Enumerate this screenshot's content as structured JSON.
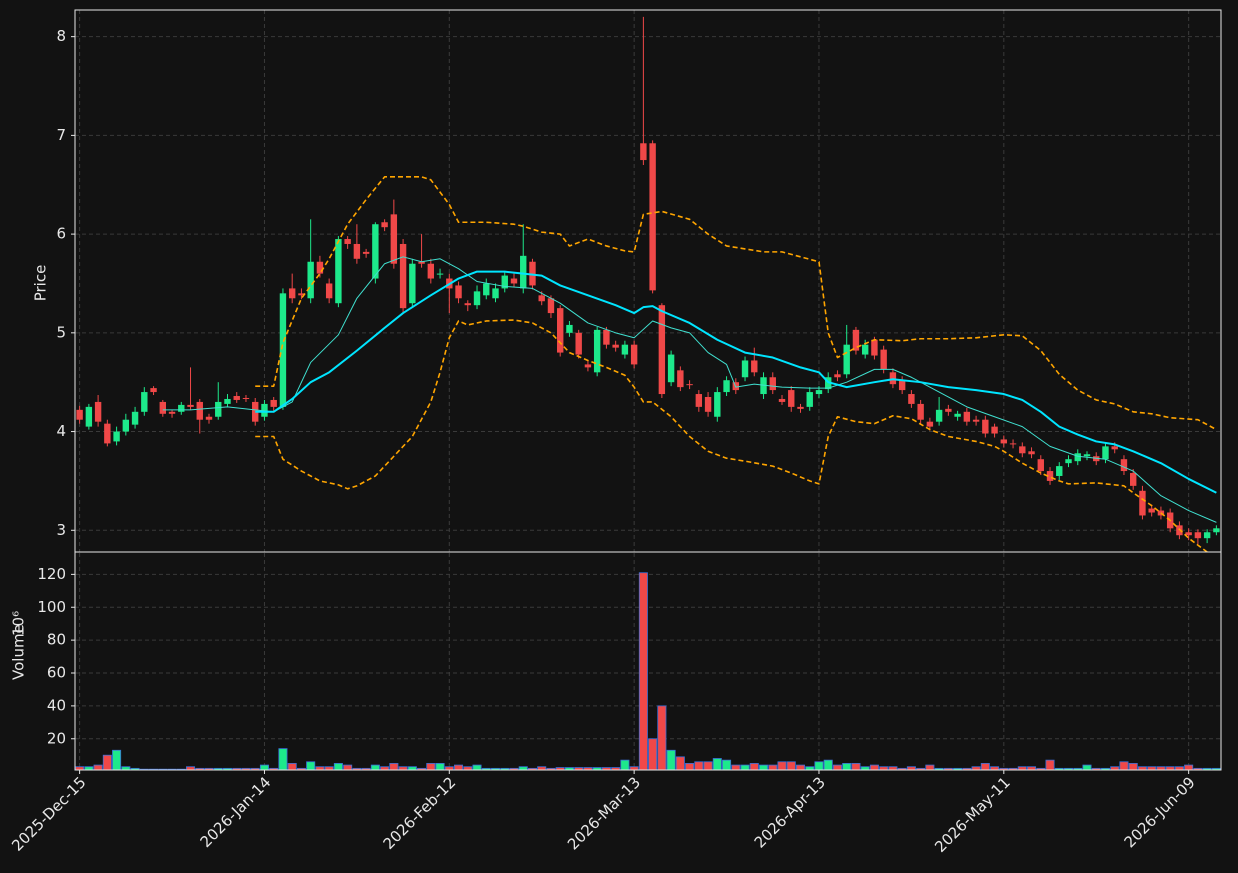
{
  "chart_data": {
    "type": "candlestick",
    "ylabel": "Price",
    "up_color": "#1de98b",
    "down_color": "#f04848",
    "grid": true,
    "xlim": [
      -0.5,
      123.5
    ],
    "ylim": [
      2.78,
      8.27
    ],
    "yticks": [
      3,
      4,
      5,
      6,
      7,
      8
    ],
    "categories": [
      "2025-Dec-15",
      null,
      null,
      null,
      null,
      null,
      null,
      null,
      null,
      null,
      null,
      null,
      null,
      null,
      null,
      null,
      null,
      null,
      null,
      null,
      "2026-Jan-14",
      null,
      null,
      null,
      null,
      null,
      null,
      null,
      null,
      null,
      null,
      null,
      null,
      null,
      null,
      null,
      null,
      null,
      null,
      null,
      "2026-Feb-12",
      null,
      null,
      null,
      null,
      null,
      null,
      null,
      null,
      null,
      null,
      null,
      null,
      null,
      null,
      null,
      null,
      null,
      null,
      null,
      "2026-Mar-13",
      null,
      null,
      null,
      null,
      null,
      null,
      null,
      null,
      null,
      null,
      null,
      null,
      null,
      null,
      null,
      null,
      null,
      null,
      null,
      "2026-Apr-13",
      null,
      null,
      null,
      null,
      null,
      null,
      null,
      null,
      null,
      null,
      null,
      null,
      null,
      null,
      null,
      null,
      null,
      null,
      null,
      "2026-May-11",
      null,
      null,
      null,
      null,
      null,
      null,
      null,
      null,
      null,
      null,
      null,
      null,
      null,
      null,
      null,
      null,
      null,
      null,
      null,
      "2026-Jun-09",
      null,
      null,
      null
    ],
    "open": [
      4.22,
      4.05,
      4.3,
      4.08,
      3.9,
      4.0,
      4.07,
      4.2,
      4.44,
      4.3,
      4.2,
      4.2,
      4.27,
      4.3,
      4.15,
      4.15,
      4.28,
      4.36,
      4.34,
      4.3,
      4.15,
      4.32,
      4.25,
      5.45,
      5.4,
      5.35,
      5.72,
      5.5,
      5.3,
      5.95,
      5.9,
      5.82,
      5.55,
      6.12,
      6.2,
      5.9,
      5.3,
      5.72,
      5.7,
      5.6,
      5.55,
      5.48,
      5.3,
      5.28,
      5.38,
      5.35,
      5.45,
      5.55,
      5.45,
      5.72,
      5.38,
      5.35,
      5.25,
      5.0,
      5.0,
      4.68,
      4.6,
      5.03,
      4.88,
      4.78,
      4.88,
      6.92,
      6.92,
      5.28,
      4.5,
      4.62,
      4.48,
      4.38,
      4.35,
      4.15,
      4.4,
      4.5,
      4.55,
      4.72,
      4.38,
      4.55,
      4.33,
      4.42,
      4.25,
      4.25,
      4.38,
      4.43,
      4.58,
      4.58,
      5.03,
      4.78,
      4.93,
      4.83,
      4.6,
      4.52,
      4.38,
      4.28,
      4.1,
      4.1,
      4.23,
      4.15,
      4.2,
      4.12,
      4.12,
      4.05,
      3.92,
      3.88,
      3.85,
      3.8,
      3.72,
      3.6,
      3.55,
      3.68,
      3.7,
      3.75,
      3.75,
      3.72,
      3.85,
      3.72,
      3.58,
      3.4,
      3.22,
      3.2,
      3.18,
      3.05,
      2.98,
      2.98,
      2.92,
      2.98
    ],
    "high": [
      4.26,
      4.28,
      4.37,
      4.12,
      4.05,
      4.18,
      4.25,
      4.45,
      4.46,
      4.32,
      4.22,
      4.3,
      4.65,
      4.33,
      4.18,
      4.5,
      4.38,
      4.4,
      4.37,
      4.34,
      4.32,
      4.35,
      5.45,
      5.6,
      5.45,
      6.15,
      5.78,
      5.55,
      5.98,
      5.98,
      6.1,
      5.85,
      6.12,
      6.15,
      6.35,
      5.95,
      5.75,
      6.0,
      5.75,
      5.65,
      5.6,
      5.52,
      5.33,
      5.48,
      5.55,
      5.5,
      5.62,
      5.6,
      6.1,
      5.75,
      5.42,
      5.38,
      5.28,
      5.12,
      5.03,
      4.72,
      5.06,
      5.06,
      4.92,
      4.92,
      4.92,
      8.2,
      6.95,
      5.3,
      4.82,
      4.66,
      4.52,
      4.42,
      4.4,
      4.45,
      4.56,
      4.54,
      4.76,
      4.85,
      4.6,
      4.6,
      4.37,
      4.46,
      4.28,
      4.45,
      4.46,
      4.6,
      4.62,
      5.08,
      5.06,
      4.93,
      4.96,
      4.87,
      4.64,
      4.56,
      4.42,
      4.32,
      4.14,
      4.35,
      4.27,
      4.21,
      4.24,
      4.16,
      4.16,
      4.08,
      3.96,
      3.92,
      3.89,
      3.84,
      3.76,
      3.64,
      3.69,
      3.76,
      3.82,
      3.8,
      3.79,
      3.89,
      3.89,
      3.76,
      3.62,
      3.45,
      3.26,
      3.24,
      3.22,
      3.09,
      3.02,
      3.01,
      3.01,
      3.05
    ],
    "low": [
      4.08,
      4.02,
      4.05,
      3.85,
      3.86,
      3.96,
      4.03,
      4.16,
      4.37,
      4.15,
      4.14,
      4.17,
      4.22,
      3.98,
      4.08,
      4.12,
      4.25,
      4.29,
      4.3,
      4.06,
      4.11,
      4.2,
      4.22,
      5.3,
      5.34,
      5.3,
      5.56,
      5.3,
      5.26,
      5.85,
      5.7,
      5.76,
      5.5,
      6.03,
      5.65,
      5.2,
      5.26,
      5.66,
      5.5,
      5.55,
      5.2,
      5.3,
      5.22,
      5.24,
      5.34,
      5.31,
      5.41,
      5.46,
      5.4,
      5.44,
      5.28,
      5.15,
      4.76,
      4.96,
      4.74,
      4.61,
      4.56,
      4.84,
      4.81,
      4.74,
      4.64,
      6.7,
      5.4,
      4.34,
      4.46,
      4.41,
      4.43,
      4.2,
      4.15,
      4.1,
      4.36,
      4.38,
      4.51,
      4.56,
      4.33,
      4.38,
      4.27,
      4.2,
      4.19,
      4.21,
      4.34,
      4.39,
      4.51,
      4.54,
      4.78,
      4.74,
      4.73,
      4.59,
      4.44,
      4.38,
      4.24,
      4.08,
      4.01,
      4.06,
      4.16,
      4.11,
      4.06,
      4.06,
      3.94,
      3.94,
      3.84,
      3.83,
      3.74,
      3.73,
      3.56,
      3.46,
      3.51,
      3.64,
      3.66,
      3.71,
      3.66,
      3.68,
      3.78,
      3.56,
      3.41,
      3.11,
      3.14,
      3.11,
      2.98,
      2.91,
      2.9,
      2.86,
      2.87,
      2.95
    ],
    "close": [
      4.12,
      4.25,
      4.1,
      3.88,
      4.0,
      4.12,
      4.2,
      4.4,
      4.4,
      4.18,
      4.18,
      4.27,
      4.25,
      4.12,
      4.12,
      4.3,
      4.33,
      4.32,
      4.33,
      4.1,
      4.28,
      4.25,
      5.4,
      5.35,
      5.38,
      5.72,
      5.6,
      5.35,
      5.95,
      5.9,
      5.75,
      5.8,
      6.1,
      6.07,
      5.7,
      5.25,
      5.7,
      5.7,
      5.55,
      5.6,
      5.45,
      5.35,
      5.28,
      5.42,
      5.5,
      5.45,
      5.58,
      5.5,
      5.78,
      5.48,
      5.32,
      5.2,
      4.8,
      5.08,
      4.78,
      4.65,
      5.03,
      4.88,
      4.85,
      4.88,
      4.68,
      6.75,
      5.43,
      4.38,
      4.78,
      4.45,
      4.47,
      4.25,
      4.2,
      4.4,
      4.52,
      4.42,
      4.72,
      4.6,
      4.55,
      4.42,
      4.3,
      4.25,
      4.23,
      4.4,
      4.42,
      4.55,
      4.55,
      4.88,
      4.82,
      4.88,
      4.77,
      4.63,
      4.48,
      4.42,
      4.28,
      4.12,
      4.05,
      4.22,
      4.2,
      4.18,
      4.1,
      4.1,
      3.98,
      3.98,
      3.88,
      3.87,
      3.78,
      3.77,
      3.6,
      3.5,
      3.65,
      3.72,
      3.78,
      3.77,
      3.7,
      3.85,
      3.82,
      3.6,
      3.45,
      3.15,
      3.18,
      3.15,
      3.02,
      2.95,
      2.95,
      2.92,
      2.98,
      3.02
    ],
    "series": [
      {
        "color": "#40e0d0",
        "width": 1,
        "dash": false,
        "x": [
          9,
          12,
          16,
          19,
          21,
          23,
          25,
          28,
          30,
          33,
          35,
          37,
          39,
          41,
          43,
          46,
          49,
          52,
          55,
          58,
          60,
          62,
          64,
          66,
          68,
          70,
          71,
          73,
          76,
          79,
          81,
          83,
          86,
          88,
          90,
          93,
          96,
          99,
          102,
          105,
          108,
          111,
          114,
          117,
          120,
          123
        ],
        "values": [
          4.22,
          4.22,
          4.25,
          4.22,
          4.2,
          4.3,
          4.7,
          4.98,
          5.35,
          5.7,
          5.77,
          5.72,
          5.75,
          5.65,
          5.52,
          5.47,
          5.45,
          5.3,
          5.1,
          5.0,
          4.95,
          5.12,
          5.05,
          5.0,
          4.8,
          4.68,
          4.45,
          4.48,
          4.45,
          4.44,
          4.44,
          4.5,
          4.63,
          4.63,
          4.55,
          4.4,
          4.25,
          4.15,
          4.05,
          3.85,
          3.75,
          3.72,
          3.6,
          3.35,
          3.2,
          3.08
        ]
      },
      {
        "color": "#00e5ff",
        "width": 2,
        "dash": false,
        "x": [
          19,
          21,
          23,
          25,
          27,
          30,
          33,
          35,
          38,
          41,
          43,
          46,
          48,
          50,
          52,
          55,
          58,
          60,
          61,
          62,
          63,
          66,
          69,
          72,
          75,
          78,
          80,
          81,
          83,
          86,
          88,
          91,
          94,
          97,
          100,
          102,
          104,
          106,
          108,
          110,
          112,
          114,
          117,
          120,
          123
        ],
        "values": [
          4.2,
          4.2,
          4.33,
          4.5,
          4.6,
          4.82,
          5.05,
          5.2,
          5.38,
          5.55,
          5.62,
          5.62,
          5.6,
          5.58,
          5.48,
          5.38,
          5.28,
          5.2,
          5.26,
          5.27,
          5.22,
          5.1,
          4.93,
          4.8,
          4.75,
          4.65,
          4.6,
          4.5,
          4.45,
          4.5,
          4.53,
          4.5,
          4.45,
          4.42,
          4.38,
          4.32,
          4.2,
          4.05,
          3.97,
          3.9,
          3.87,
          3.8,
          3.68,
          3.52,
          3.38
        ]
      },
      {
        "color": "#ffa500",
        "width": 1.6,
        "dash": true,
        "x": [
          19,
          21,
          22,
          24,
          26,
          27,
          29,
          31,
          33,
          35,
          37,
          38,
          40,
          41,
          44,
          47,
          48,
          50,
          52,
          53,
          55,
          57,
          59,
          60,
          61,
          63,
          66,
          68,
          70,
          72,
          74,
          76,
          78,
          80,
          81,
          82,
          84,
          86,
          89,
          91,
          94,
          97,
          100,
          102,
          104,
          106,
          108,
          110,
          112,
          114,
          116,
          118,
          121,
          123
        ],
        "values": [
          4.46,
          4.46,
          4.9,
          5.35,
          5.6,
          5.75,
          6.1,
          6.35,
          6.58,
          6.58,
          6.58,
          6.55,
          6.3,
          6.12,
          6.12,
          6.1,
          6.08,
          6.02,
          6.0,
          5.88,
          5.95,
          5.88,
          5.83,
          5.82,
          6.2,
          6.23,
          6.15,
          6.0,
          5.88,
          5.85,
          5.82,
          5.82,
          5.77,
          5.72,
          5.0,
          4.75,
          4.85,
          4.93,
          4.92,
          4.94,
          4.94,
          4.95,
          4.98,
          4.97,
          4.82,
          4.58,
          4.42,
          4.32,
          4.28,
          4.2,
          4.18,
          4.14,
          4.12,
          4.02
        ]
      },
      {
        "color": "#ffa500",
        "width": 1.6,
        "dash": true,
        "x": [
          19,
          21,
          22,
          24,
          26,
          28,
          29,
          30,
          32,
          34,
          36,
          38,
          39,
          40,
          41,
          42,
          44,
          47,
          49,
          51,
          53,
          55,
          57,
          59,
          60,
          61,
          62,
          64,
          66,
          68,
          70,
          72,
          75,
          77,
          79,
          80,
          81,
          82,
          84,
          86,
          88,
          90,
          92,
          94,
          97,
          99,
          100,
          102,
          104,
          106,
          107,
          110,
          113,
          114,
          116,
          118,
          120,
          121,
          122
        ],
        "values": [
          3.95,
          3.95,
          3.72,
          3.6,
          3.5,
          3.46,
          3.42,
          3.45,
          3.55,
          3.75,
          3.95,
          4.3,
          4.6,
          4.95,
          5.12,
          5.08,
          5.12,
          5.13,
          5.1,
          5.0,
          4.8,
          4.72,
          4.65,
          4.57,
          4.45,
          4.3,
          4.3,
          4.15,
          3.95,
          3.8,
          3.73,
          3.7,
          3.65,
          3.58,
          3.5,
          3.47,
          3.95,
          4.15,
          4.1,
          4.08,
          4.16,
          4.13,
          4.02,
          3.95,
          3.9,
          3.85,
          3.8,
          3.68,
          3.58,
          3.5,
          3.47,
          3.48,
          3.45,
          3.38,
          3.25,
          3.1,
          2.92,
          2.85,
          2.78
        ]
      }
    ],
    "volume": {
      "ylabel": "Volume",
      "unit": "10⁶",
      "edge_color": "#3a6fd8",
      "ylim": [
        1,
        133
      ],
      "yticks": [
        20,
        40,
        60,
        80,
        100,
        120
      ],
      "values": [
        3,
        3,
        4,
        10,
        13,
        3,
        2,
        1.5,
        1.5,
        1.5,
        1.5,
        1.5,
        3,
        2,
        2,
        2,
        2,
        2,
        2,
        2,
        4,
        2,
        14,
        5,
        2,
        6,
        3,
        3,
        5,
        4,
        2,
        2,
        4,
        3,
        5,
        3,
        3,
        2,
        5,
        5,
        3,
        4,
        3,
        4,
        2,
        2,
        2,
        2,
        3,
        2,
        3,
        2,
        2.5,
        2.5,
        2.5,
        2.5,
        2.5,
        2.5,
        2.5,
        7,
        3,
        121,
        20,
        40,
        13,
        9,
        5,
        6,
        6,
        8,
        7,
        4,
        4,
        5,
        4,
        4,
        6,
        6,
        4,
        3,
        6,
        7,
        4,
        5,
        5,
        3,
        4,
        3,
        3,
        2,
        3,
        2,
        4,
        2,
        2,
        2,
        2,
        3,
        5,
        3,
        2,
        2,
        3,
        3,
        2,
        7,
        2,
        2,
        2,
        4,
        2,
        2,
        3,
        6,
        5,
        3,
        3,
        3,
        3,
        3,
        4,
        2,
        2,
        2
      ]
    }
  }
}
